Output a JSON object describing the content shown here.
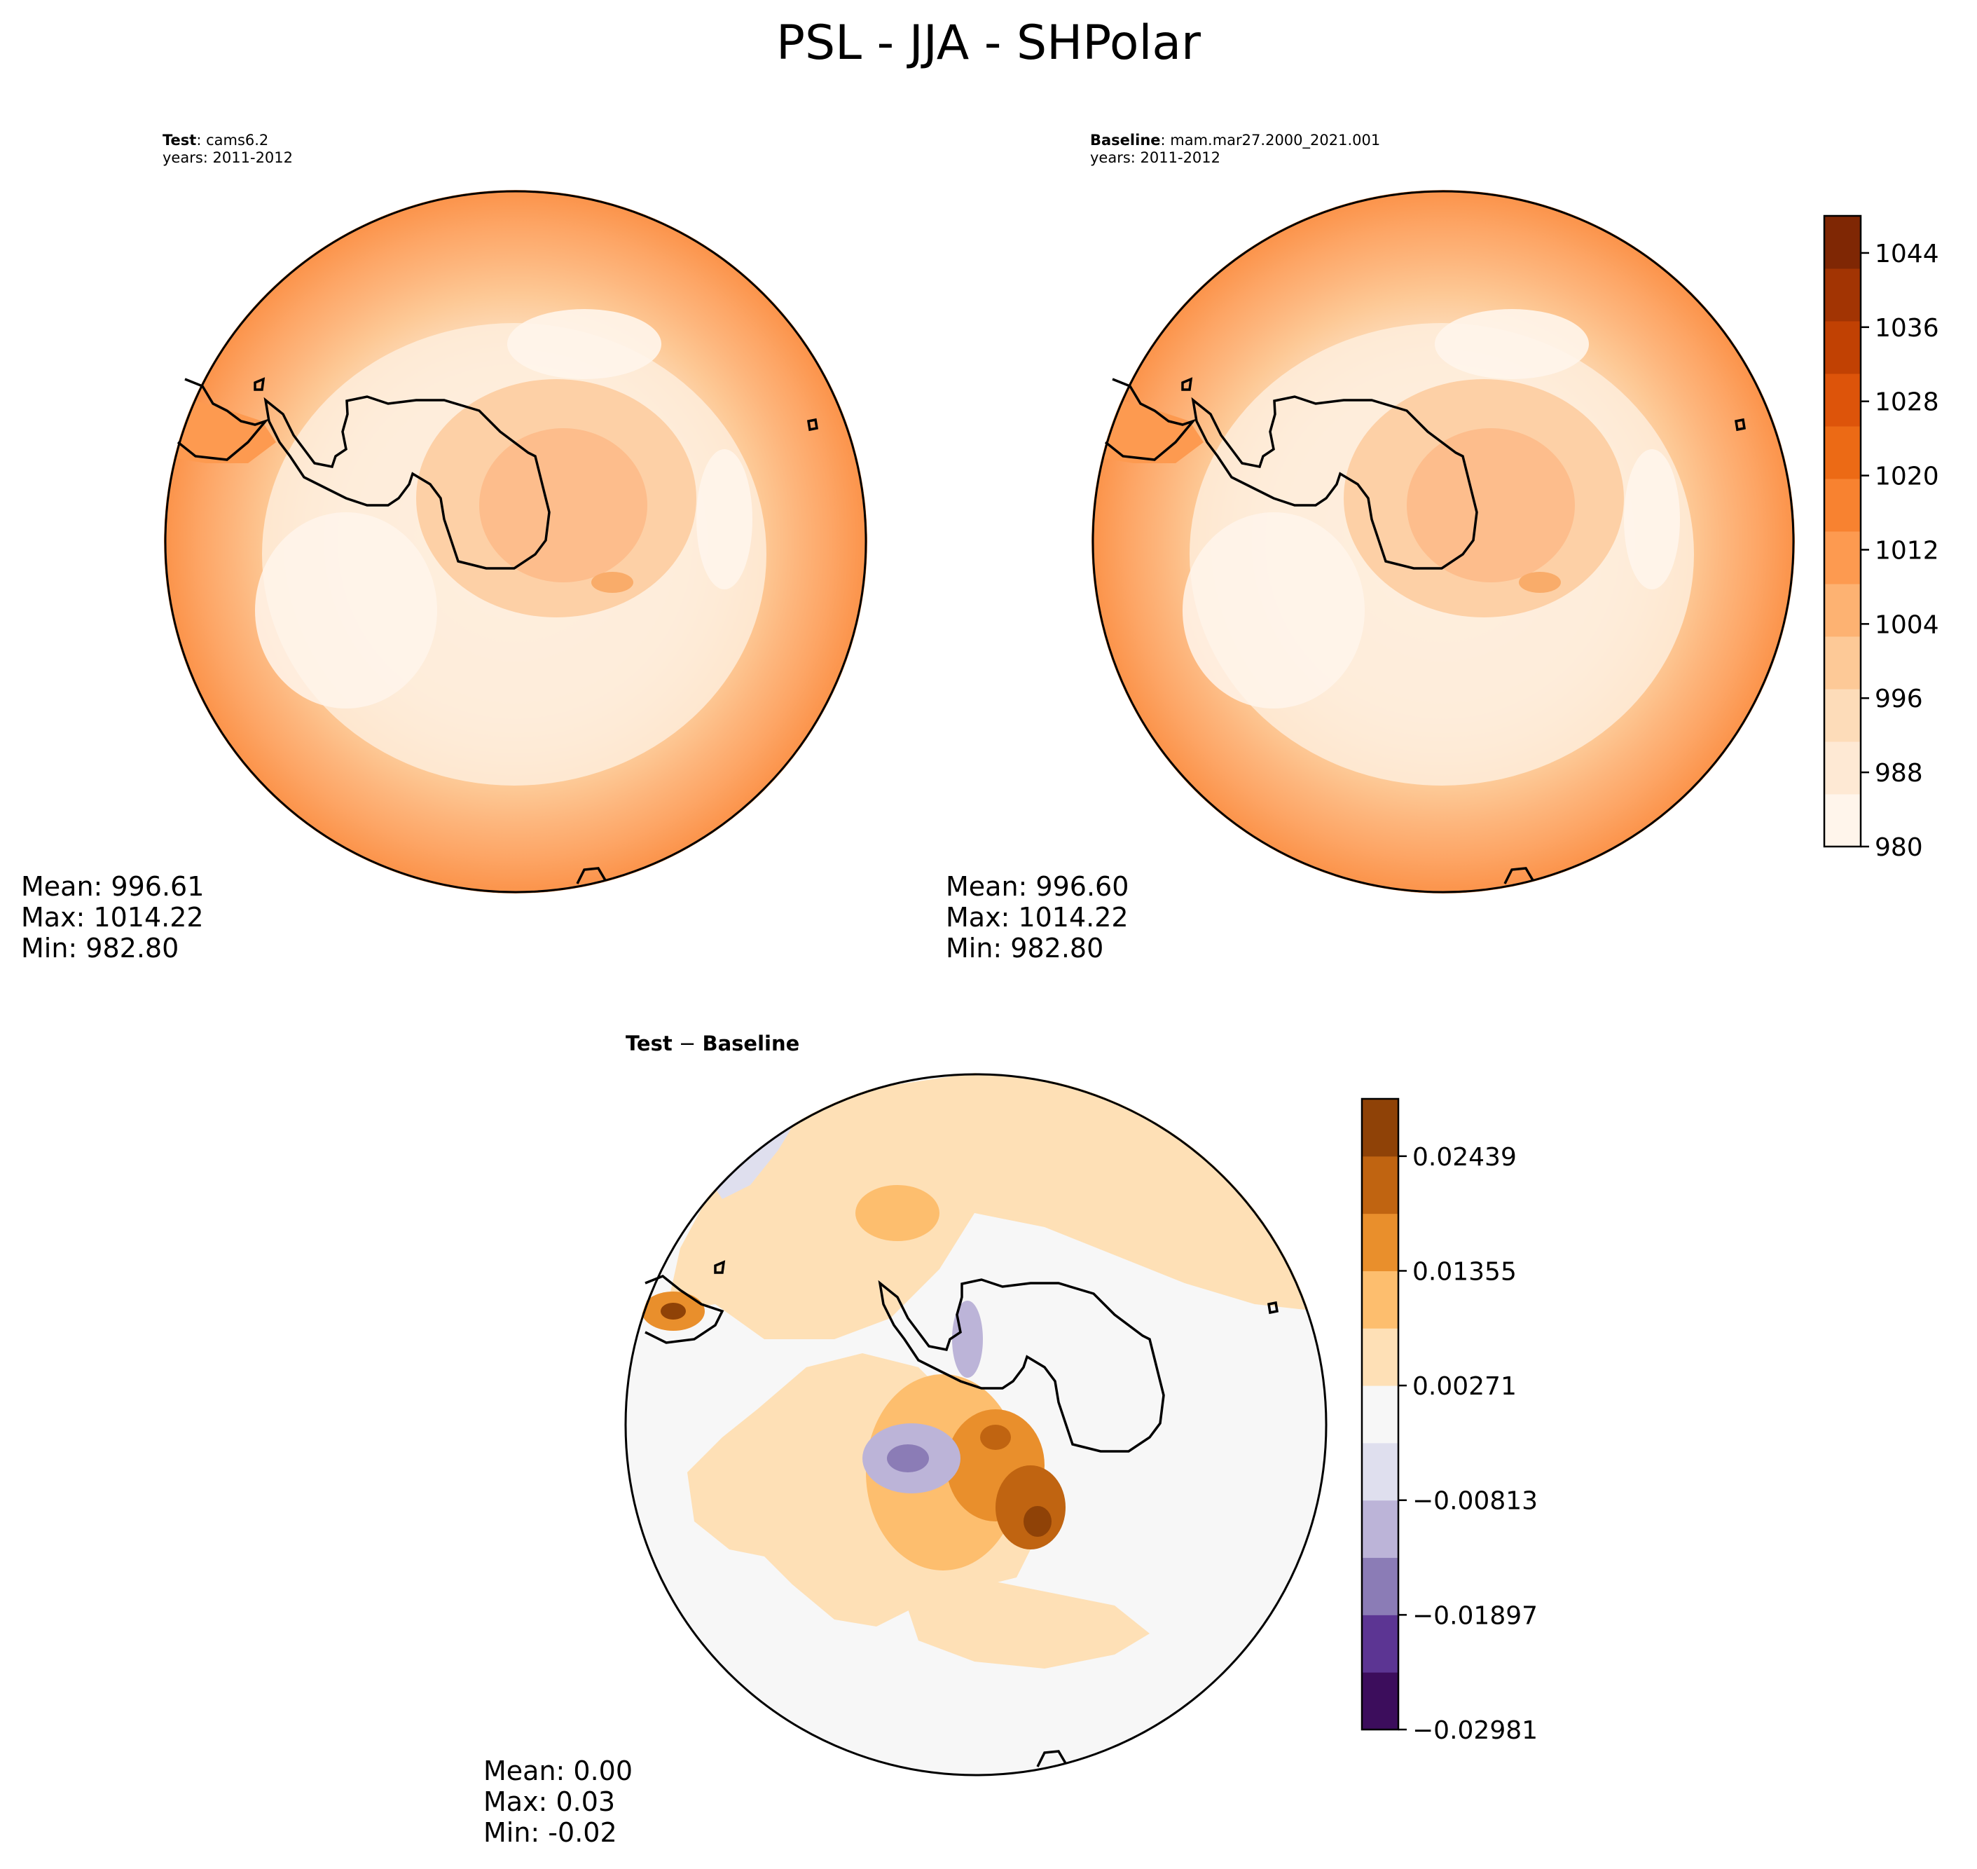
{
  "figure": {
    "title": "PSL - JJA - SHPolar"
  },
  "panels": [
    {
      "id": "test",
      "header_bold": "Test",
      "header_rest": ": cams6.2",
      "years": "years: 2011-2012",
      "stats": [
        "Mean: 996.61",
        "Max: 1014.22",
        "Min: 982.80"
      ]
    },
    {
      "id": "baseline",
      "header_bold": "Baseline",
      "header_rest": ": mam.mar27.2000_2021.001",
      "years": "years: 2011-2012",
      "stats": [
        "Mean: 996.60",
        "Max: 1014.22",
        "Min: 982.80"
      ]
    },
    {
      "id": "difference",
      "header_bold": "Test",
      "header_sep": " − ",
      "header_bold2": "Baseline",
      "stats": [
        "Mean:  0.00",
        "Max:  0.03",
        "Min: -0.02"
      ]
    }
  ],
  "colorbars": {
    "psl": {
      "colormap": "Oranges",
      "range": [
        980,
        1048
      ],
      "tick_labels": [
        "980",
        "988",
        "996",
        "1004",
        "1012",
        "1020",
        "1028",
        "1036",
        "1044"
      ],
      "colors": [
        "#fff5eb",
        "#fee9d4",
        "#fddcb9",
        "#fdc997",
        "#fdb272",
        "#fd9a50",
        "#f88230",
        "#ec6a15",
        "#dd540a",
        "#c14103",
        "#a23403",
        "#7f2704"
      ]
    },
    "diff": {
      "colormap": "PuOr_r",
      "tick_labels": [
        "−0.02981",
        "−0.01897",
        "−0.00813",
        "0.00271",
        "0.01355",
        "0.02439"
      ],
      "colors": [
        "#3c0d5c",
        "#5c3593",
        "#8b7cb6",
        "#bcb4d8",
        "#dfdfee",
        "#f7f7f7",
        "#fee0b6",
        "#fdbe6e",
        "#e98f2c",
        "#c06411",
        "#8f4207"
      ]
    }
  },
  "map_colors": {
    "test_field": [
      "#fdbd8c",
      "#fdd0a6",
      "#fee3c8",
      "#feefde",
      "#fd9a50",
      "#f9ac6a"
    ],
    "diff_field": [
      "#f7f7f7",
      "#fee0b6",
      "#fdbe6e",
      "#e98f2c",
      "#c06411",
      "#8f4207",
      "#dfdfee",
      "#bcb4d8",
      "#8b7cb6"
    ]
  }
}
